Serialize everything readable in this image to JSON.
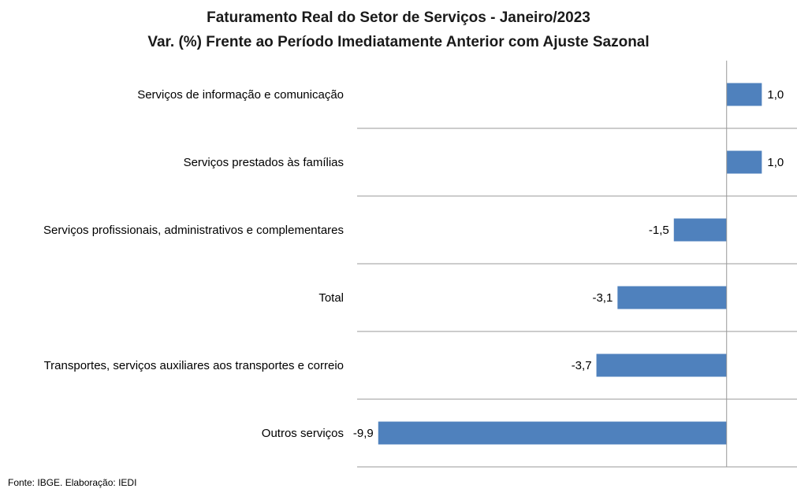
{
  "chart_data": {
    "type": "bar",
    "orientation": "horizontal",
    "title": "Faturamento Real do Setor de Serviços - Janeiro/2023",
    "subtitle": "Var. (%) Frente ao Período Imediatamente Anterior com Ajuste Sazonal",
    "categories": [
      "Serviços de informação e comunicação",
      "Serviços prestados às famílias",
      "Serviços profissionais, administrativos e complementares",
      "Total",
      "Transportes, serviços auxiliares aos transportes e correio",
      "Outros serviços"
    ],
    "values": [
      1.0,
      1.0,
      -1.5,
      -3.1,
      -3.7,
      -9.9
    ],
    "value_labels": [
      "1,0",
      "1,0",
      "-1,5",
      "-3,1",
      "-3,7",
      "-9,9"
    ],
    "xlim": [
      -10.5,
      2.0
    ],
    "grid": "horizontal separators between categories",
    "legend": "none",
    "bar_color": "#4F81BD"
  },
  "source": "Fonte: IBGE. Elaboração: IEDI"
}
